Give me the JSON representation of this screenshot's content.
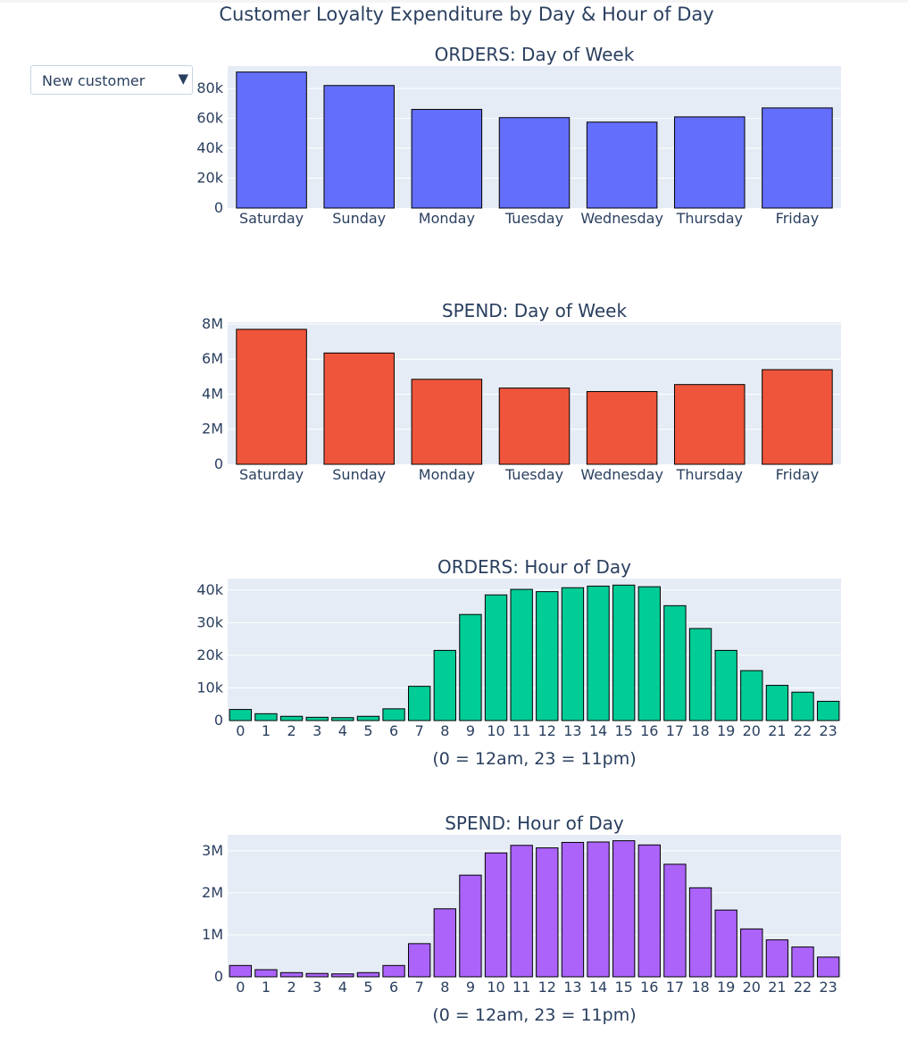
{
  "title": "Customer Loyalty Expenditure by Day & Hour of Day",
  "dropdown": {
    "selected": "New customer",
    "caret": "▼"
  },
  "chart_data": [
    {
      "type": "bar",
      "title": "ORDERS: Day of Week",
      "xlabel": "",
      "ylabel": "",
      "color": "#636efa",
      "categories": [
        "Saturday",
        "Sunday",
        "Monday",
        "Tuesday",
        "Wednesday",
        "Thursday",
        "Friday"
      ],
      "values": [
        91000,
        82000,
        66000,
        60500,
        57500,
        61000,
        67000
      ],
      "ylim": [
        0,
        95000
      ],
      "yticks": [
        0,
        20000,
        40000,
        60000,
        80000
      ],
      "yticklabels": [
        "0",
        "20k",
        "40k",
        "60k",
        "80k"
      ]
    },
    {
      "type": "bar",
      "title": "SPEND: Day of Week",
      "xlabel": "",
      "ylabel": "",
      "color": "#ef553b",
      "categories": [
        "Saturday",
        "Sunday",
        "Monday",
        "Tuesday",
        "Wednesday",
        "Thursday",
        "Friday"
      ],
      "values": [
        7700000,
        6350000,
        4850000,
        4350000,
        4150000,
        4550000,
        5400000
      ],
      "ylim": [
        0,
        8100000
      ],
      "yticks": [
        0,
        2000000,
        4000000,
        6000000,
        8000000
      ],
      "yticklabels": [
        "0",
        "2M",
        "4M",
        "6M",
        "8M"
      ]
    },
    {
      "type": "bar",
      "title": "ORDERS: Hour of Day",
      "xlabel": "(0 = 12am, 23 = 11pm)",
      "ylabel": "",
      "color": "#00cc96",
      "categories": [
        "0",
        "1",
        "2",
        "3",
        "4",
        "5",
        "6",
        "7",
        "8",
        "9",
        "10",
        "11",
        "12",
        "13",
        "14",
        "15",
        "16",
        "17",
        "18",
        "19",
        "20",
        "21",
        "22",
        "23"
      ],
      "values": [
        3400,
        2100,
        1300,
        1000,
        900,
        1300,
        3600,
        10500,
        21500,
        32500,
        38500,
        40200,
        39500,
        40700,
        41200,
        41500,
        41000,
        35200,
        28200,
        21500,
        15300,
        10800,
        8700,
        5900
      ],
      "ylim": [
        0,
        43500
      ],
      "yticks": [
        0,
        10000,
        20000,
        30000,
        40000
      ],
      "yticklabels": [
        "0",
        "10k",
        "20k",
        "30k",
        "40k"
      ]
    },
    {
      "type": "bar",
      "title": "SPEND: Hour of Day",
      "xlabel": "(0 = 12am, 23 = 11pm)",
      "ylabel": "",
      "color": "#ab63fa",
      "categories": [
        "0",
        "1",
        "2",
        "3",
        "4",
        "5",
        "6",
        "7",
        "8",
        "9",
        "10",
        "11",
        "12",
        "13",
        "14",
        "15",
        "16",
        "17",
        "18",
        "19",
        "20",
        "21",
        "22",
        "23"
      ],
      "values": [
        270000,
        170000,
        100000,
        80000,
        70000,
        100000,
        270000,
        790000,
        1620000,
        2420000,
        2950000,
        3130000,
        3070000,
        3200000,
        3210000,
        3240000,
        3140000,
        2680000,
        2120000,
        1590000,
        1140000,
        880000,
        710000,
        470000
      ],
      "ylim": [
        0,
        3380000
      ],
      "yticks": [
        0,
        1000000,
        2000000,
        3000000
      ],
      "yticklabels": [
        "0",
        "1M",
        "2M",
        "3M"
      ]
    }
  ]
}
